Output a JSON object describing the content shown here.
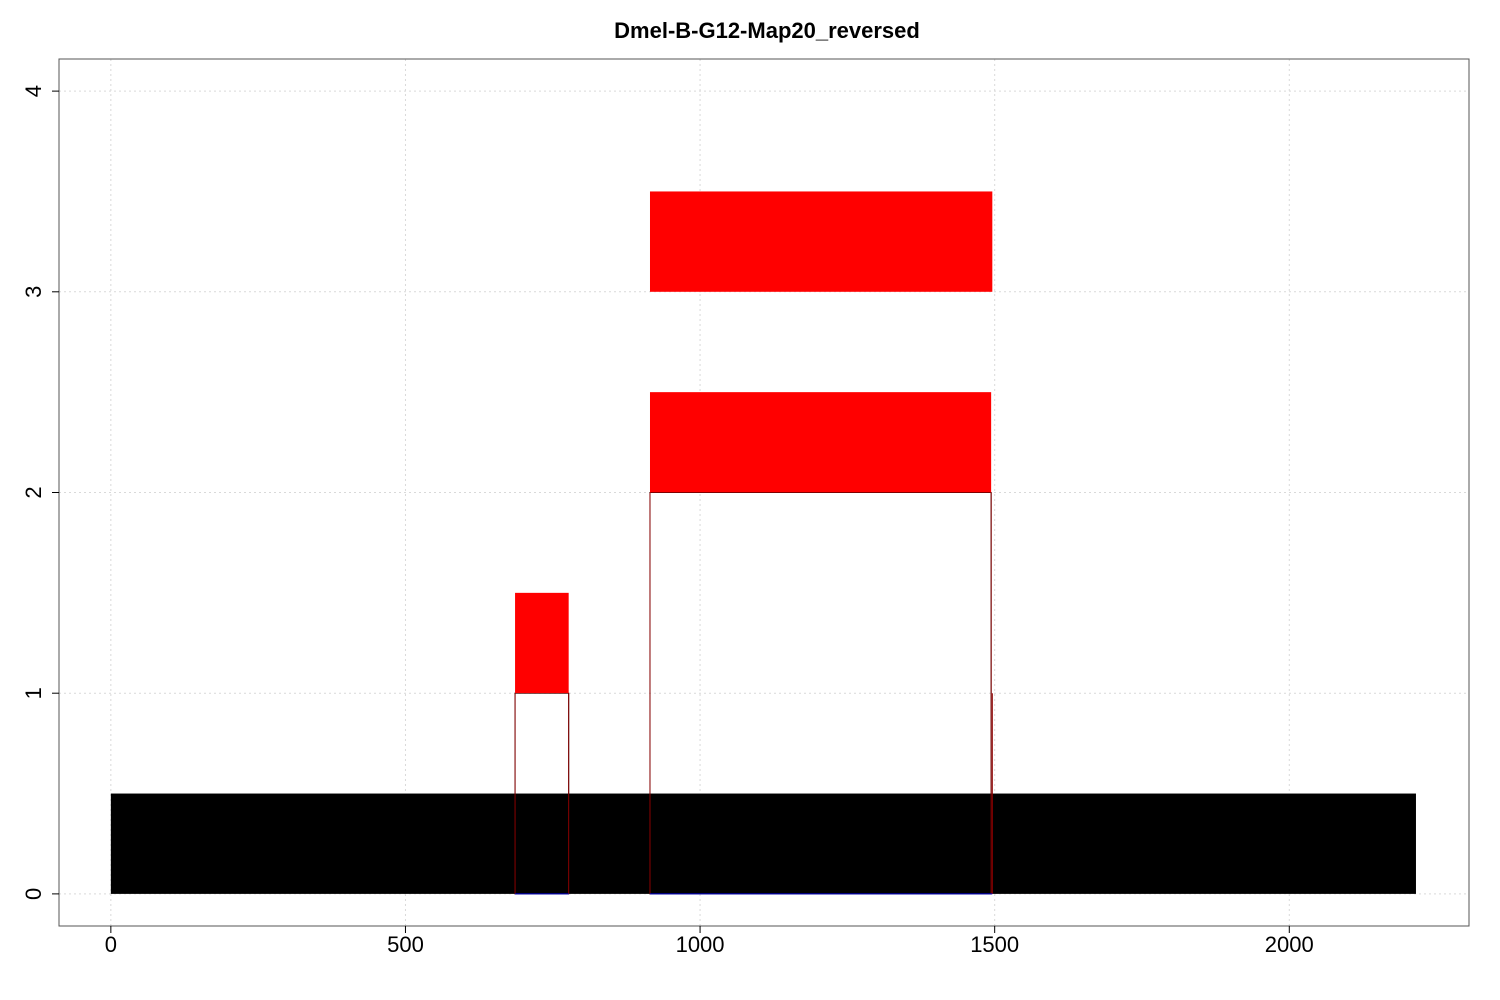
{
  "chart_data": {
    "type": "bar",
    "title": "Dmel-B-G12-Map20_reversed",
    "xlabel": "",
    "ylabel": "",
    "xlim": [
      -88,
      2305
    ],
    "ylim": [
      -0.16,
      4.16
    ],
    "x_ticks": [
      0,
      500,
      1000,
      1500,
      2000
    ],
    "x_tick_labels": [
      "0",
      "500",
      "1000",
      "1500",
      "2000"
    ],
    "y_ticks": [
      0,
      1,
      2,
      3,
      4
    ],
    "y_tick_labels": [
      "0",
      "1",
      "2",
      "3",
      "4"
    ],
    "grid": true,
    "colors": {
      "reference": "#000000",
      "feature": "#ff0000",
      "outline": "#000000",
      "connector": "#8b0000",
      "baseline": "#0000cd",
      "grid": "#d9d9d9",
      "frame": "#555555"
    },
    "reference_bar": {
      "x_start": 0,
      "x_end": 2215,
      "y_bottom": 0,
      "y_top": 0.5
    },
    "feature_blocks": [
      {
        "x_start": 686,
        "x_end": 777,
        "y_bottom": 1,
        "y_top": 1.5
      },
      {
        "x_start": 915,
        "x_end": 1494,
        "y_bottom": 2,
        "y_top": 2.5
      },
      {
        "x_start": 915,
        "x_end": 1496,
        "y_bottom": 3,
        "y_top": 3.5
      }
    ],
    "outline_boxes": [
      {
        "x_start": 686,
        "x_end": 777,
        "y_bottom": 0,
        "y_top": 1
      },
      {
        "x_start": 915,
        "x_end": 1494,
        "y_bottom": 0,
        "y_top": 2
      }
    ],
    "connectors": [
      {
        "x": 1496,
        "y_bottom": 0,
        "y_top": 1
      }
    ],
    "baseline_segments": [
      {
        "x_start": 686,
        "x_end": 777,
        "y": 0
      },
      {
        "x_start": 915,
        "x_end": 1496,
        "y": 0
      }
    ]
  }
}
